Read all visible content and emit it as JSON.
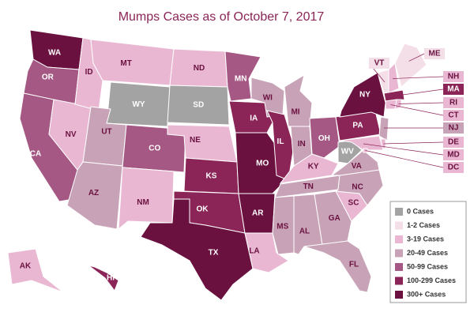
{
  "title": "Mumps Cases as of October 7, 2017",
  "legend": [
    {
      "label": "0 Cases",
      "color": "#a3a3a3"
    },
    {
      "label": "1-2 Cases",
      "color": "#f4dfe9"
    },
    {
      "label": "3-19 Cases",
      "color": "#e9b7d2"
    },
    {
      "label": "20-49 Cases",
      "color": "#c8a3b7"
    },
    {
      "label": "50-99 Cases",
      "color": "#a45883"
    },
    {
      "label": "100-299 Cases",
      "color": "#8b2557"
    },
    {
      "label": "300+ Cases",
      "color": "#6a1140"
    }
  ],
  "states": [
    {
      "label": "WA",
      "category": 6
    },
    {
      "label": "OR",
      "category": 4
    },
    {
      "label": "CA",
      "category": 4
    },
    {
      "label": "NV",
      "category": 2
    },
    {
      "label": "ID",
      "category": 2
    },
    {
      "label": "MT",
      "category": 2
    },
    {
      "label": "WY",
      "category": 0
    },
    {
      "label": "UT",
      "category": 3
    },
    {
      "label": "AZ",
      "category": 3
    },
    {
      "label": "CO",
      "category": 4
    },
    {
      "label": "NM",
      "category": 2
    },
    {
      "label": "ND",
      "category": 2
    },
    {
      "label": "SD",
      "category": 0
    },
    {
      "label": "NE",
      "category": 2
    },
    {
      "label": "KS",
      "category": 5
    },
    {
      "label": "OK",
      "category": 5
    },
    {
      "label": "TX",
      "category": 6
    },
    {
      "label": "MN",
      "category": 4
    },
    {
      "label": "IA",
      "category": 5
    },
    {
      "label": "MO",
      "category": 6
    },
    {
      "label": "AR",
      "category": 6
    },
    {
      "label": "LA",
      "category": 2
    },
    {
      "label": "WI",
      "category": 3
    },
    {
      "label": "IL",
      "category": 5
    },
    {
      "label": "MI",
      "category": 3
    },
    {
      "label": "IN",
      "category": 3
    },
    {
      "label": "OH",
      "category": 4
    },
    {
      "label": "KY",
      "category": 2
    },
    {
      "label": "TN",
      "category": 3
    },
    {
      "label": "MS",
      "category": 3
    },
    {
      "label": "AL",
      "category": 3
    },
    {
      "label": "GA",
      "category": 3
    },
    {
      "label": "FL",
      "category": 3
    },
    {
      "label": "SC",
      "category": 2
    },
    {
      "label": "NC",
      "category": 3
    },
    {
      "label": "VA",
      "category": 3
    },
    {
      "label": "WV",
      "category": 0
    },
    {
      "label": "PA",
      "category": 5
    },
    {
      "label": "NY",
      "category": 6
    },
    {
      "label": "VT",
      "category": 1
    },
    {
      "label": "ME",
      "category": 1
    },
    {
      "label": "NH",
      "category": 2
    },
    {
      "label": "MA",
      "category": 5
    },
    {
      "label": "RI",
      "category": 2
    },
    {
      "label": "CT",
      "category": 2
    },
    {
      "label": "NJ",
      "category": 3
    },
    {
      "label": "DE",
      "category": 2
    },
    {
      "label": "MD",
      "category": 2
    },
    {
      "label": "DC",
      "category": 2
    },
    {
      "label": "AK",
      "category": 2
    },
    {
      "label": "HI",
      "category": 5
    }
  ]
}
